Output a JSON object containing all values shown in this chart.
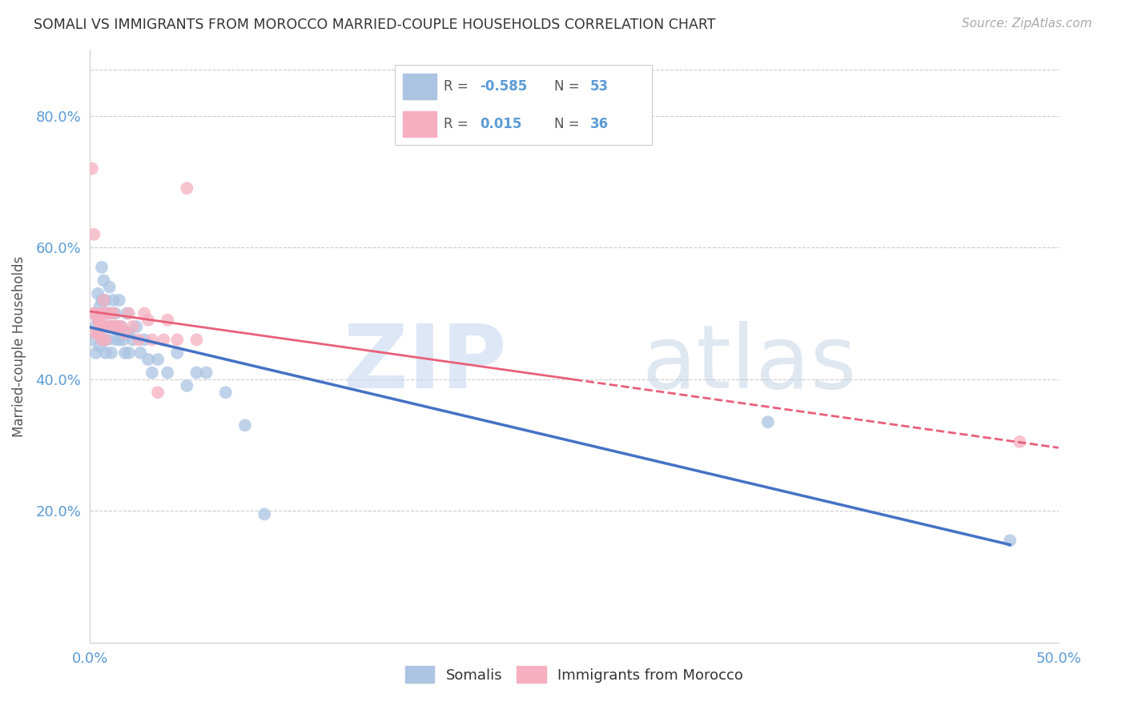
{
  "title": "SOMALI VS IMMIGRANTS FROM MOROCCO MARRIED-COUPLE HOUSEHOLDS CORRELATION CHART",
  "source": "Source: ZipAtlas.com",
  "ylabel": "Married-couple Households",
  "xlim": [
    0.0,
    0.5
  ],
  "ylim": [
    0.0,
    0.9
  ],
  "R_somali": -0.585,
  "N_somali": 53,
  "R_morocco": 0.015,
  "N_morocco": 36,
  "somali_color": "#aac4e2",
  "morocco_color": "#f5afc0",
  "somali_line_color": "#4472c4",
  "morocco_line_color": "#e8607a",
  "somali_x": [
    0.001,
    0.002,
    0.003,
    0.003,
    0.004,
    0.004,
    0.005,
    0.005,
    0.005,
    0.006,
    0.006,
    0.006,
    0.007,
    0.007,
    0.008,
    0.008,
    0.008,
    0.009,
    0.009,
    0.01,
    0.01,
    0.011,
    0.011,
    0.012,
    0.012,
    0.013,
    0.013,
    0.014,
    0.015,
    0.015,
    0.016,
    0.017,
    0.018,
    0.019,
    0.02,
    0.02,
    0.022,
    0.024,
    0.026,
    0.028,
    0.03,
    0.032,
    0.035,
    0.04,
    0.045,
    0.05,
    0.055,
    0.06,
    0.07,
    0.08,
    0.09,
    0.35,
    0.475
  ],
  "somali_y": [
    0.46,
    0.5,
    0.48,
    0.44,
    0.53,
    0.49,
    0.51,
    0.47,
    0.45,
    0.57,
    0.52,
    0.48,
    0.55,
    0.5,
    0.52,
    0.48,
    0.44,
    0.5,
    0.46,
    0.54,
    0.5,
    0.48,
    0.44,
    0.52,
    0.48,
    0.5,
    0.46,
    0.48,
    0.52,
    0.46,
    0.48,
    0.46,
    0.44,
    0.5,
    0.47,
    0.44,
    0.46,
    0.48,
    0.44,
    0.46,
    0.43,
    0.41,
    0.43,
    0.41,
    0.44,
    0.39,
    0.41,
    0.41,
    0.38,
    0.33,
    0.195,
    0.335,
    0.155
  ],
  "morocco_x": [
    0.001,
    0.002,
    0.002,
    0.003,
    0.003,
    0.004,
    0.004,
    0.005,
    0.005,
    0.006,
    0.006,
    0.007,
    0.007,
    0.008,
    0.008,
    0.009,
    0.01,
    0.011,
    0.012,
    0.013,
    0.014,
    0.016,
    0.018,
    0.02,
    0.022,
    0.025,
    0.028,
    0.03,
    0.032,
    0.035,
    0.038,
    0.04,
    0.045,
    0.05,
    0.055,
    0.48
  ],
  "morocco_y": [
    0.72,
    0.62,
    0.5,
    0.5,
    0.47,
    0.49,
    0.47,
    0.49,
    0.48,
    0.5,
    0.46,
    0.52,
    0.48,
    0.5,
    0.46,
    0.48,
    0.5,
    0.48,
    0.5,
    0.48,
    0.48,
    0.48,
    0.47,
    0.5,
    0.48,
    0.46,
    0.5,
    0.49,
    0.46,
    0.38,
    0.46,
    0.49,
    0.46,
    0.69,
    0.46,
    0.305
  ]
}
